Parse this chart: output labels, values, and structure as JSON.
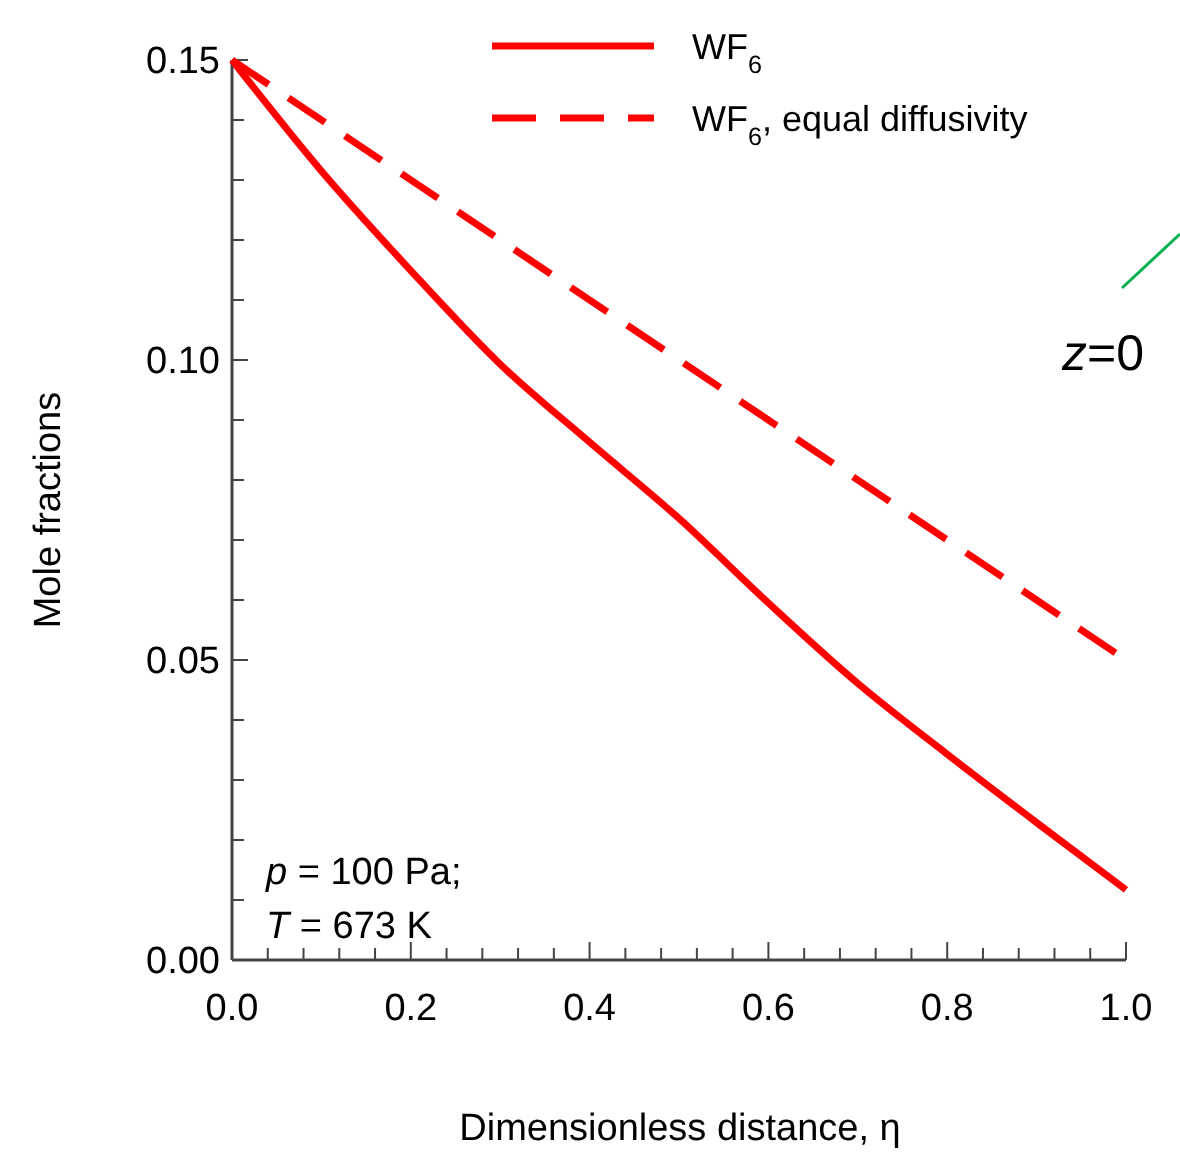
{
  "chart_data": {
    "type": "line",
    "xlabel": "Dimensionless distance, η",
    "ylabel": "Mole fractions",
    "xlim": [
      0,
      1
    ],
    "ylim": [
      0,
      0.15
    ],
    "xticks": [
      {
        "value": 0,
        "label": "0.0"
      },
      {
        "value": 0.04,
        "label": null
      },
      {
        "value": 0.08,
        "label": null
      },
      {
        "value": 0.12,
        "label": null
      },
      {
        "value": 0.16,
        "label": null
      },
      {
        "value": 0.2,
        "label": "0.2"
      },
      {
        "value": 0.24,
        "label": null
      },
      {
        "value": 0.28,
        "label": null
      },
      {
        "value": 0.32,
        "label": null
      },
      {
        "value": 0.36,
        "label": null
      },
      {
        "value": 0.4,
        "label": "0.4"
      },
      {
        "value": 0.44,
        "label": null
      },
      {
        "value": 0.48,
        "label": null
      },
      {
        "value": 0.52,
        "label": null
      },
      {
        "value": 0.56,
        "label": null
      },
      {
        "value": 0.6,
        "label": "0.6"
      },
      {
        "value": 0.64,
        "label": null
      },
      {
        "value": 0.68,
        "label": null
      },
      {
        "value": 0.72,
        "label": null
      },
      {
        "value": 0.76,
        "label": null
      },
      {
        "value": 0.8,
        "label": "0.8"
      },
      {
        "value": 0.84,
        "label": null
      },
      {
        "value": 0.88,
        "label": null
      },
      {
        "value": 0.92,
        "label": null
      },
      {
        "value": 0.96,
        "label": null
      },
      {
        "value": 1,
        "label": "1.0"
      }
    ],
    "yticks": [
      {
        "value": 0,
        "label": "0.00"
      },
      {
        "value": 0.01,
        "label": null
      },
      {
        "value": 0.02,
        "label": null
      },
      {
        "value": 0.03,
        "label": null
      },
      {
        "value": 0.04,
        "label": null
      },
      {
        "value": 0.05,
        "label": "0.05"
      },
      {
        "value": 0.06,
        "label": null
      },
      {
        "value": 0.07,
        "label": null
      },
      {
        "value": 0.08,
        "label": null
      },
      {
        "value": 0.09,
        "label": null
      },
      {
        "value": 0.1,
        "label": "0.10"
      },
      {
        "value": 0.11,
        "label": null
      },
      {
        "value": 0.12,
        "label": null
      },
      {
        "value": 0.13,
        "label": null
      },
      {
        "value": 0.14,
        "label": null
      },
      {
        "value": 0.15,
        "label": "0.15"
      }
    ],
    "series": [
      {
        "name": "WF$_{6}$",
        "color": "#ff0000",
        "line_style": "solid",
        "x": [
          0,
          0.1,
          0.2,
          0.3,
          0.4,
          0.5,
          0.6,
          0.7,
          0.8,
          0.9,
          1
        ],
        "values": [
          0.15,
          0.1315,
          0.1149,
          0.0993,
          0.0863,
          0.0736,
          0.0595,
          0.0461,
          0.0343,
          0.0229,
          0.0117
        ]
      },
      {
        "name": "WF$_{6}$, equal diffusivity",
        "color": "#ff0000",
        "line_style": "dashed",
        "x": [
          0,
          1
        ],
        "values": [
          0.15,
          0.05
        ]
      }
    ],
    "annotations": [
      "p = 100 Pa;",
      "T = 673 K",
      "z=0"
    ],
    "legend": "top",
    "grid": false,
    "marker": "none"
  }
}
